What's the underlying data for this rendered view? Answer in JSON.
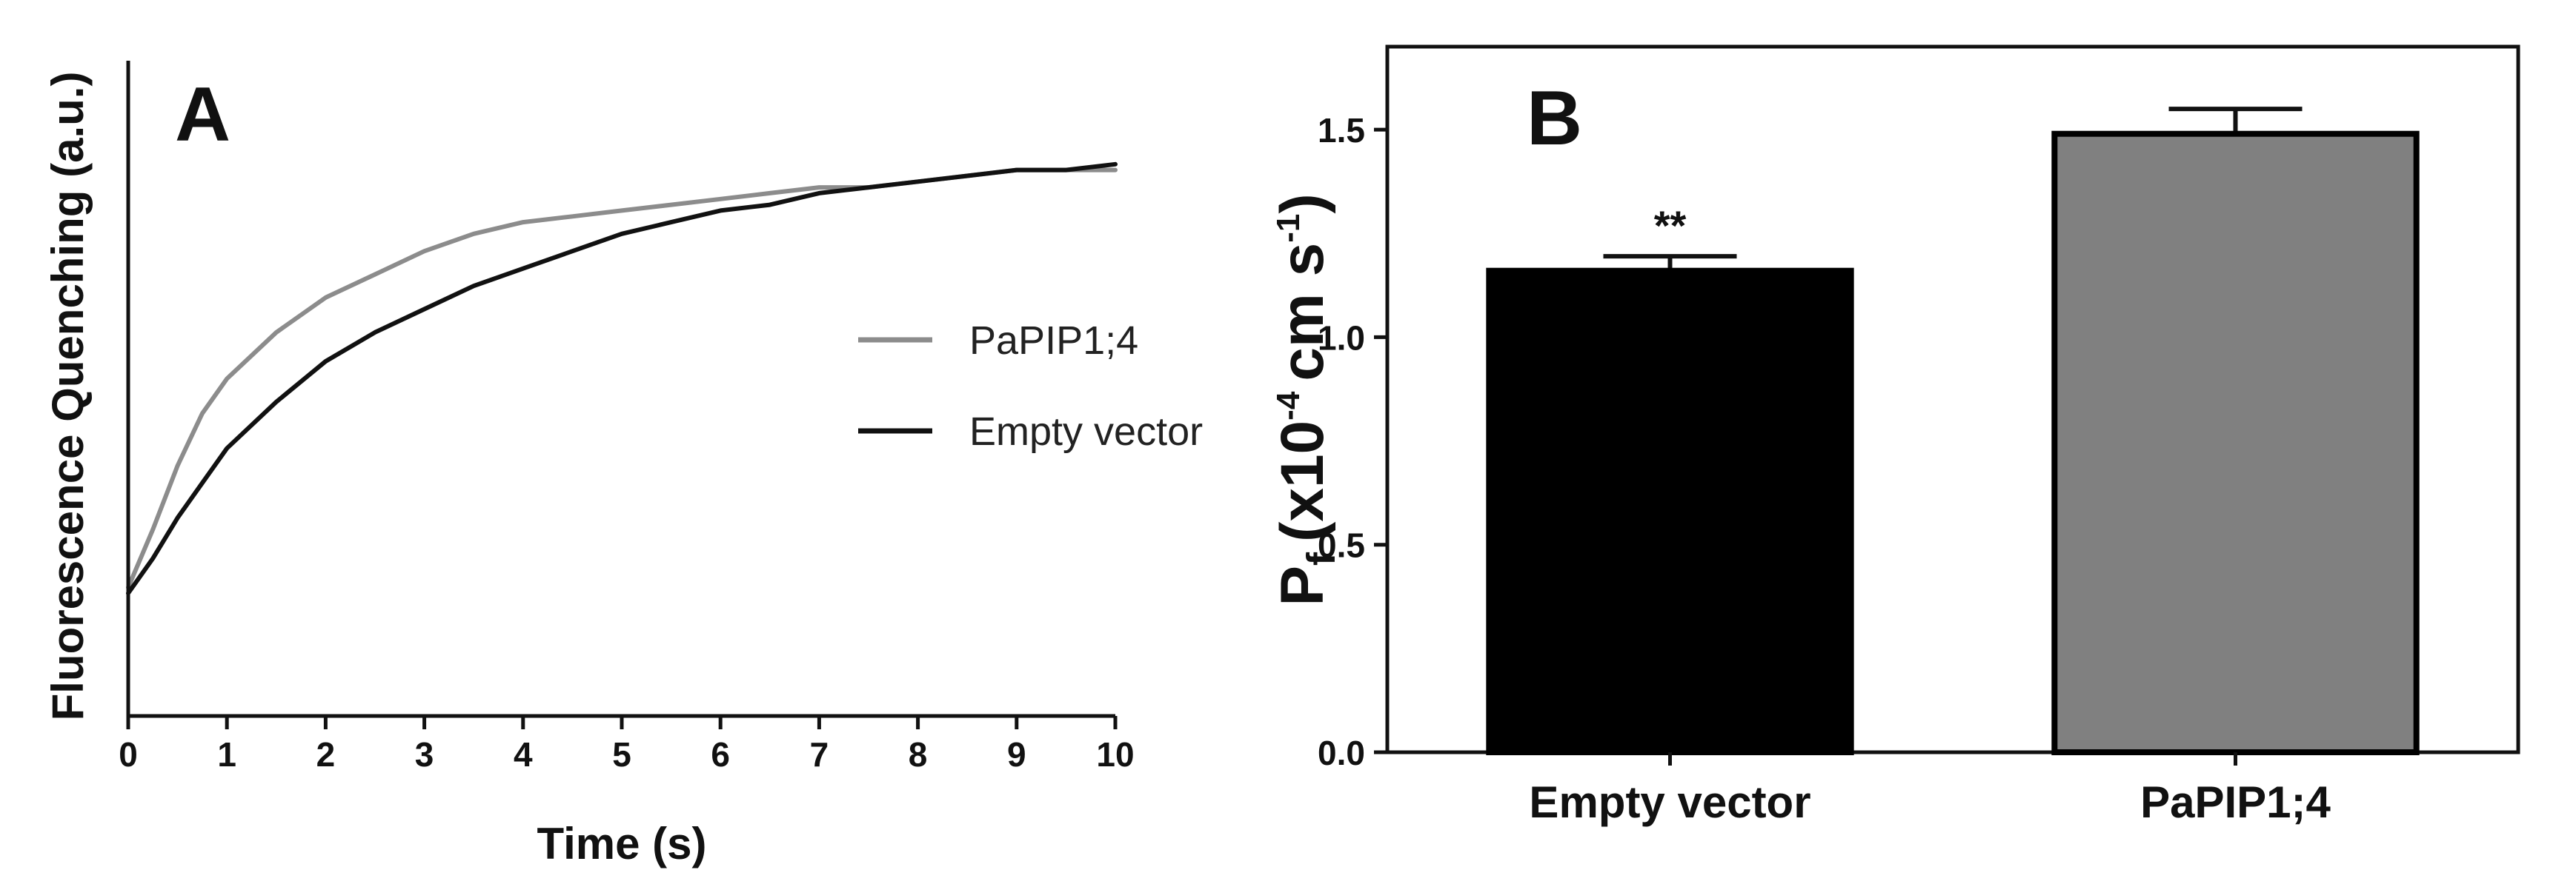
{
  "chart_data": [
    {
      "type": "line",
      "panel_label": "A",
      "xlabel": "Time (s)",
      "ylabel": "Fluorescence Quenching (a.u.)",
      "xlim": [
        0,
        10
      ],
      "x_ticks": [
        "0",
        "1",
        "2",
        "3",
        "4",
        "5",
        "6",
        "7",
        "8",
        "9",
        "10"
      ],
      "ylim": [
        0,
        1
      ],
      "y_ticks_labeled": false,
      "grid": false,
      "legend_position": "right",
      "series": [
        {
          "name": "PaPIP1;4",
          "color": "#8c8c8c",
          "x": [
            0,
            0.25,
            0.5,
            0.75,
            1,
            1.5,
            2,
            2.5,
            3,
            3.5,
            4,
            4.5,
            5,
            5.5,
            6,
            6.5,
            7,
            7.5,
            8,
            8.5,
            9,
            9.5,
            10
          ],
          "y": [
            0.14,
            0.24,
            0.35,
            0.44,
            0.5,
            0.58,
            0.64,
            0.68,
            0.72,
            0.75,
            0.77,
            0.78,
            0.79,
            0.8,
            0.81,
            0.82,
            0.83,
            0.83,
            0.84,
            0.85,
            0.86,
            0.86,
            0.86
          ]
        },
        {
          "name": "Empty vector",
          "color": "#111111",
          "x": [
            0,
            0.25,
            0.5,
            0.75,
            1,
            1.5,
            2,
            2.5,
            3,
            3.5,
            4,
            4.5,
            5,
            5.5,
            6,
            6.5,
            7,
            7.5,
            8,
            8.5,
            9,
            9.5,
            10
          ],
          "y": [
            0.13,
            0.19,
            0.26,
            0.32,
            0.38,
            0.46,
            0.53,
            0.58,
            0.62,
            0.66,
            0.69,
            0.72,
            0.75,
            0.77,
            0.79,
            0.8,
            0.82,
            0.83,
            0.84,
            0.85,
            0.86,
            0.86,
            0.87
          ]
        }
      ]
    },
    {
      "type": "bar",
      "panel_label": "B",
      "categories": [
        "Empty vector",
        "PaPIP1;4"
      ],
      "values": [
        1.16,
        1.49
      ],
      "errors": [
        0.035,
        0.06
      ],
      "bar_colors": [
        "#000000",
        "#808080"
      ],
      "annotations": [
        "**",
        ""
      ],
      "ylabel": {
        "main": "P",
        "subscript": "f",
        "prefix": "(x10",
        "exponent1": "-4",
        "units": "cm s",
        "exponent2": "-1",
        "suffix": ")"
      },
      "ylim": [
        0,
        1.7
      ],
      "y_ticks": [
        "0.0",
        "0.5",
        "1.0",
        "1.5"
      ],
      "grid": false,
      "legend": false
    }
  ]
}
